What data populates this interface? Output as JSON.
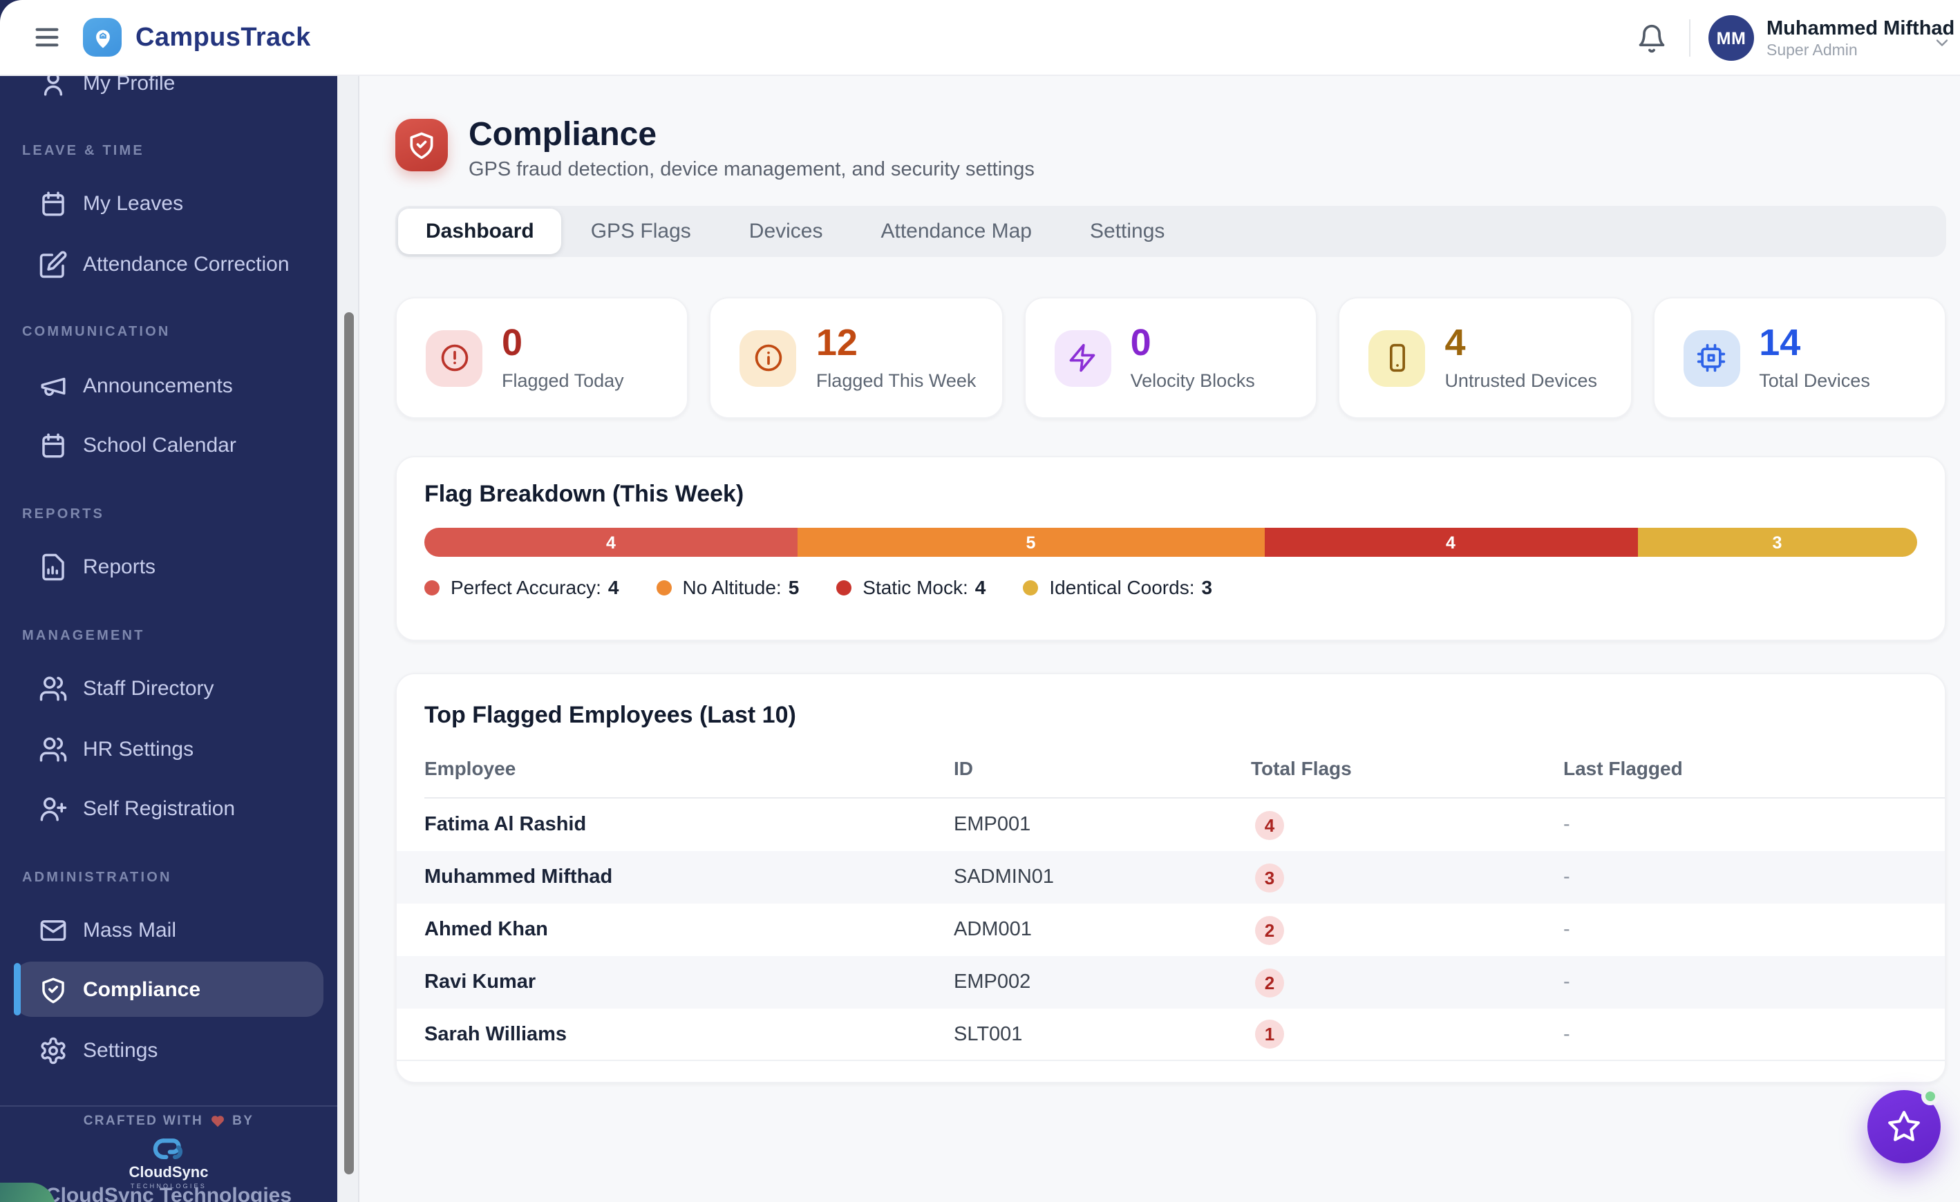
{
  "header": {
    "app_name": "CampusTrack",
    "user": {
      "initials": "MM",
      "name": "Muhammed Mifthad",
      "role": "Super Admin"
    }
  },
  "sidebar": {
    "top_item": {
      "label": "My Profile"
    },
    "sections": [
      {
        "title": "LEAVE & TIME",
        "items": [
          {
            "label": "My Leaves"
          },
          {
            "label": "Attendance Correction"
          }
        ]
      },
      {
        "title": "COMMUNICATION",
        "items": [
          {
            "label": "Announcements"
          },
          {
            "label": "School Calendar"
          }
        ]
      },
      {
        "title": "REPORTS",
        "items": [
          {
            "label": "Reports"
          }
        ]
      },
      {
        "title": "MANAGEMENT",
        "items": [
          {
            "label": "Staff Directory"
          },
          {
            "label": "HR Settings"
          },
          {
            "label": "Self Registration"
          }
        ]
      },
      {
        "title": "ADMINISTRATION",
        "items": [
          {
            "label": "Mass Mail"
          },
          {
            "label": "Compliance",
            "active": true
          },
          {
            "label": "Settings"
          }
        ]
      }
    ],
    "footer": {
      "crafted_prefix": "CRAFTED WITH",
      "crafted_suffix": "BY",
      "logo_text": "CloudSync",
      "logo_sub": "TECHNOLOGIES",
      "company": "CloudSync Technologies"
    }
  },
  "page": {
    "title": "Compliance",
    "subtitle": "GPS fraud detection, device management, and security settings",
    "tabs": [
      {
        "label": "Dashboard",
        "active": true
      },
      {
        "label": "GPS Flags"
      },
      {
        "label": "Devices"
      },
      {
        "label": "Attendance Map"
      },
      {
        "label": "Settings"
      }
    ]
  },
  "stats": [
    {
      "value": "0",
      "label": "Flagged Today",
      "accent": "#ab2a23",
      "icon_color": "#bb332a",
      "icon_bg": "#f9dddd",
      "icon": "alert-circle-icon"
    },
    {
      "value": "12",
      "label": "Flagged This Week",
      "accent": "#c14a12",
      "icon_color": "#c14a12",
      "icon_bg": "#fbeacf",
      "icon": "info-circle-icon"
    },
    {
      "value": "0",
      "label": "Velocity Blocks",
      "accent": "#8626cf",
      "icon_color": "#8b2fd6",
      "icon_bg": "#f3e7fc",
      "icon": "zap-icon"
    },
    {
      "value": "4",
      "label": "Untrusted Devices",
      "accent": "#9c660d",
      "icon_color": "#8a5d10",
      "icon_bg": "#f8f0bd",
      "icon": "smartphone-icon"
    },
    {
      "value": "14",
      "label": "Total Devices",
      "accent": "#2456e4",
      "icon_color": "#2e63e8",
      "icon_bg": "#d7e5f8",
      "icon": "cpu-icon"
    }
  ],
  "chart_data": {
    "type": "bar",
    "title": "Flag Breakdown (This Week)",
    "categories": [
      "Perfect Accuracy",
      "No Altitude",
      "Static Mock",
      "Identical Coords"
    ],
    "values": [
      4,
      5,
      4,
      3
    ],
    "colors": [
      "#d8584f",
      "#ee8a33",
      "#c9352d",
      "#e0b13c"
    ],
    "total": 16,
    "legend_position": "bottom",
    "orientation": "horizontal-stacked"
  },
  "table": {
    "title": "Top Flagged Employees (Last 10)",
    "columns": [
      "Employee",
      "ID",
      "Total Flags",
      "Last Flagged"
    ],
    "rows": [
      {
        "employee": "Fatima Al Rashid",
        "id": "EMP001",
        "flags": "4",
        "last": "-"
      },
      {
        "employee": "Muhammed Mifthad",
        "id": "SADMIN01",
        "flags": "3",
        "last": "-"
      },
      {
        "employee": "Ahmed Khan",
        "id": "ADM001",
        "flags": "2",
        "last": "-"
      },
      {
        "employee": "Ravi Kumar",
        "id": "EMP002",
        "flags": "2",
        "last": "-"
      },
      {
        "employee": "Sarah Williams",
        "id": "SLT001",
        "flags": "1",
        "last": "-"
      }
    ]
  }
}
